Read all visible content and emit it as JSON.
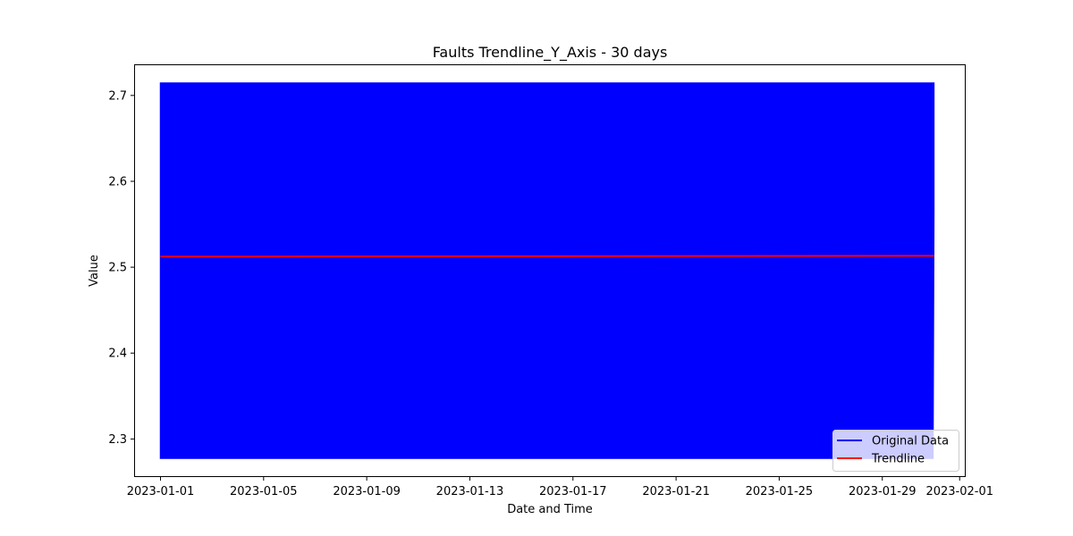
{
  "chart_data": {
    "type": "line",
    "title": "Faults Trendline_Y_Axis - 30 days",
    "xlabel": "Date and Time",
    "ylabel": "Value",
    "xlim": [
      "2022-12-31T00:17",
      "2023-02-01T04:48"
    ],
    "ylim": [
      2.2567,
      2.7352
    ],
    "x_ticks": [
      "2023-01-01",
      "2023-01-05",
      "2023-01-09",
      "2023-01-13",
      "2023-01-17",
      "2023-01-21",
      "2023-01-25",
      "2023-01-29",
      "2023-02-01"
    ],
    "y_ticks": [
      2.3,
      2.4,
      2.5,
      2.6,
      2.7
    ],
    "grid": false,
    "legend_position": "lower-right",
    "series": [
      {
        "name": "Original Data",
        "color": "#0000ff",
        "style": "dense-oscillation",
        "x_start": "2023-01-01T00:00",
        "x_end": "2023-01-31T00:00",
        "y_min": 2.2775,
        "y_max": 2.7144,
        "y_last": 2.565
      },
      {
        "name": "Trendline",
        "color": "#ff0000",
        "x": [
          "2023-01-01T00:00",
          "2023-01-31T00:00"
        ],
        "y": [
          2.5123,
          2.5133
        ]
      }
    ]
  }
}
